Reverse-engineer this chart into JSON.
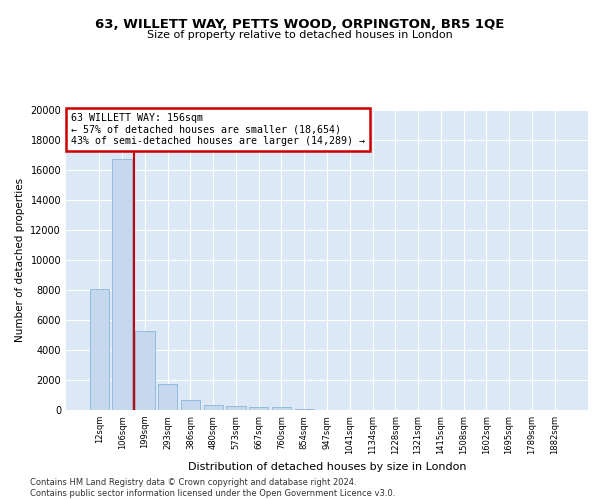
{
  "title": "63, WILLETT WAY, PETTS WOOD, ORPINGTON, BR5 1QE",
  "subtitle": "Size of property relative to detached houses in London",
  "xlabel": "Distribution of detached houses by size in London",
  "ylabel": "Number of detached properties",
  "categories": [
    "12sqm",
    "106sqm",
    "199sqm",
    "293sqm",
    "386sqm",
    "480sqm",
    "573sqm",
    "667sqm",
    "760sqm",
    "854sqm",
    "947sqm",
    "1041sqm",
    "1134sqm",
    "1228sqm",
    "1321sqm",
    "1415sqm",
    "1508sqm",
    "1602sqm",
    "1695sqm",
    "1789sqm",
    "1882sqm"
  ],
  "bar_values": [
    8100,
    16700,
    5300,
    1750,
    650,
    350,
    270,
    200,
    180,
    100,
    0,
    0,
    0,
    0,
    0,
    0,
    0,
    0,
    0,
    0,
    0
  ],
  "bar_color": "#c5d8ee",
  "bar_edge_color": "#7aadd4",
  "vline_x": 1.5,
  "vline_color": "#cc0000",
  "annotation_title": "63 WILLETT WAY: 156sqm",
  "annotation_line1": "← 57% of detached houses are smaller (18,654)",
  "annotation_line2": "43% of semi-detached houses are larger (14,289) →",
  "annotation_box_color": "white",
  "annotation_box_edge": "#cc0000",
  "ylim": [
    0,
    20000
  ],
  "yticks": [
    0,
    2000,
    4000,
    6000,
    8000,
    10000,
    12000,
    14000,
    16000,
    18000,
    20000
  ],
  "background_color": "#dce8f5",
  "grid_color": "white",
  "footer_line1": "Contains HM Land Registry data © Crown copyright and database right 2024.",
  "footer_line2": "Contains public sector information licensed under the Open Government Licence v3.0."
}
